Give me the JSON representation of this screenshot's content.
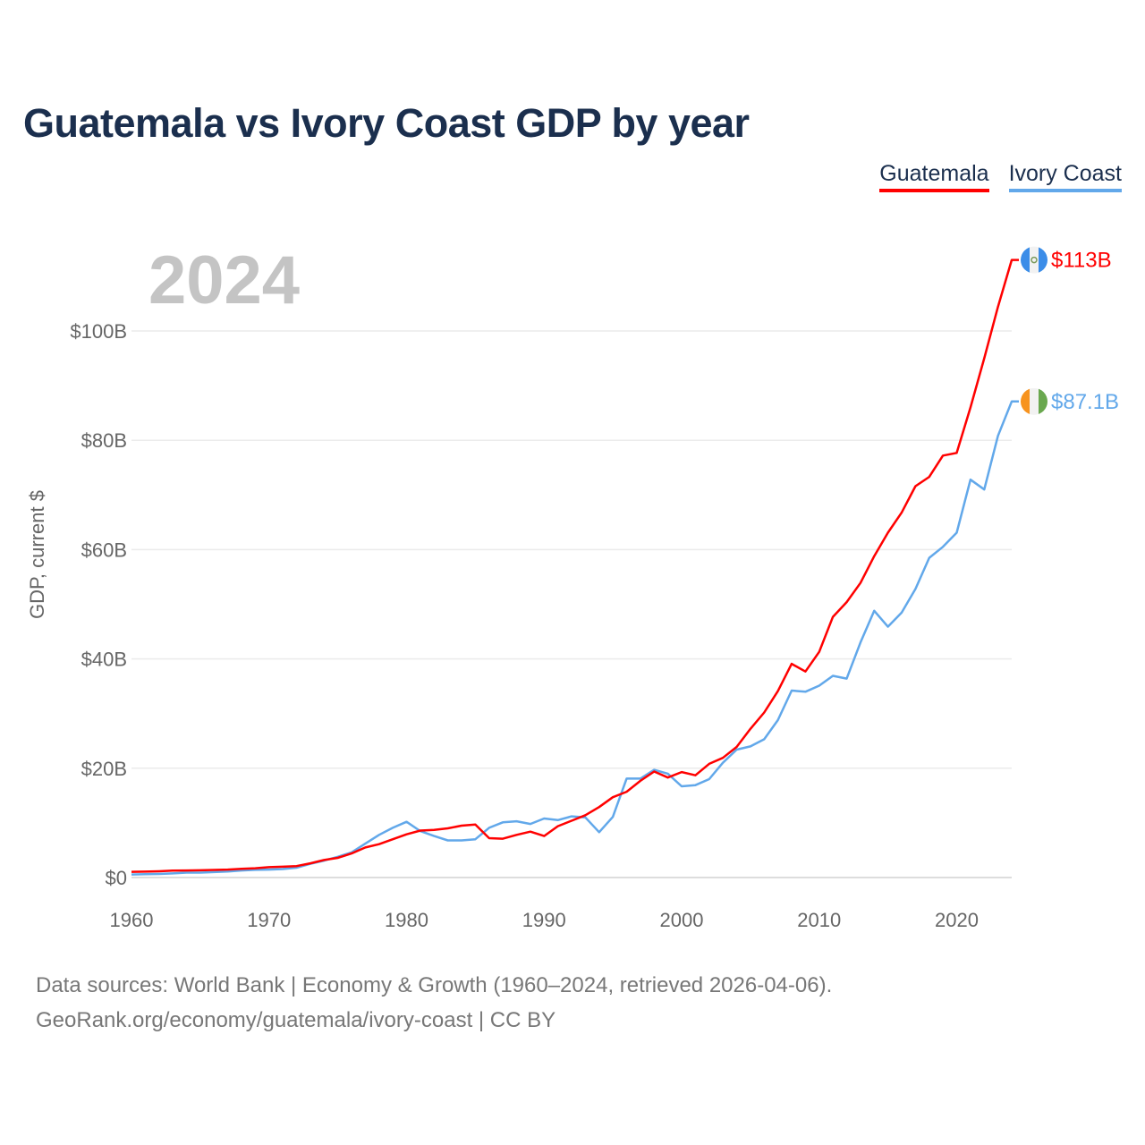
{
  "chart_data": {
    "type": "line",
    "title": "Guatemala vs Ivory Coast GDP by year",
    "xlabel": "",
    "ylabel": "GDP, current $",
    "current_year": "2024",
    "xlim": [
      1960,
      2024
    ],
    "ylim": [
      0,
      113
    ],
    "x_ticks": [
      1960,
      1970,
      1980,
      1990,
      2000,
      2010,
      2020
    ],
    "y_ticks": [
      0,
      20,
      40,
      60,
      80,
      100
    ],
    "y_tick_labels": [
      "$0",
      "$20B",
      "$40B",
      "$60B",
      "$80B",
      "$100B"
    ],
    "grid": true,
    "legend_placement": "top-right",
    "x": [
      1960,
      1961,
      1962,
      1963,
      1964,
      1965,
      1966,
      1967,
      1968,
      1969,
      1970,
      1971,
      1972,
      1973,
      1974,
      1975,
      1976,
      1977,
      1978,
      1979,
      1980,
      1981,
      1982,
      1983,
      1984,
      1985,
      1986,
      1987,
      1988,
      1989,
      1990,
      1991,
      1992,
      1993,
      1994,
      1995,
      1996,
      1997,
      1998,
      1999,
      2000,
      2001,
      2002,
      2003,
      2004,
      2005,
      2006,
      2007,
      2008,
      2009,
      2010,
      2011,
      2012,
      2013,
      2014,
      2015,
      2016,
      2017,
      2018,
      2019,
      2020,
      2021,
      2022,
      2023,
      2024
    ],
    "series": [
      {
        "name": "Guatemala",
        "color": "#ff0000",
        "end_label": "$113B",
        "flag": "guatemala-flag",
        "values": [
          1.04,
          1.08,
          1.15,
          1.26,
          1.3,
          1.33,
          1.39,
          1.45,
          1.6,
          1.7,
          1.9,
          1.98,
          2.1,
          2.6,
          3.2,
          3.6,
          4.4,
          5.5,
          6.1,
          7.0,
          7.9,
          8.6,
          8.7,
          9.0,
          9.5,
          9.7,
          7.2,
          7.1,
          7.8,
          8.4,
          7.6,
          9.4,
          10.4,
          11.4,
          12.9,
          14.7,
          15.7,
          17.7,
          19.4,
          18.3,
          19.3,
          18.7,
          20.8,
          21.9,
          23.9,
          27.2,
          30.2,
          34.1,
          39.1,
          37.7,
          41.3,
          47.7,
          50.4,
          53.9,
          58.8,
          63.1,
          66.8,
          71.6,
          73.3,
          77.2,
          77.7,
          86.0,
          95.0,
          104.4,
          113.0
        ]
      },
      {
        "name": "Ivory Coast",
        "color": "#62a8ea",
        "end_label": "$87.1B",
        "flag": "ivory-coast-flag",
        "values": [
          0.55,
          0.6,
          0.65,
          0.75,
          0.9,
          0.9,
          1.0,
          1.1,
          1.3,
          1.4,
          1.45,
          1.55,
          1.8,
          2.5,
          3.1,
          3.8,
          4.6,
          6.2,
          7.8,
          9.1,
          10.2,
          8.5,
          7.6,
          6.8,
          6.8,
          7.0,
          9.1,
          10.1,
          10.3,
          9.8,
          10.8,
          10.5,
          11.2,
          11.0,
          8.3,
          11.1,
          18.1,
          18.1,
          19.7,
          19.0,
          16.7,
          16.9,
          18.0,
          21.0,
          23.4,
          24.0,
          25.3,
          28.8,
          34.2,
          34.0,
          35.1,
          36.9,
          36.4,
          43.0,
          48.8,
          45.9,
          48.5,
          52.8,
          58.5,
          60.5,
          63.1,
          72.8,
          71.0,
          80.8,
          87.1
        ]
      }
    ]
  },
  "footer": {
    "line1": "Data sources: World Bank | Economy & Growth (1960–2024, retrieved 2026-04-06).",
    "line2": "GeoRank.org/economy/guatemala/ivory-coast | CC BY"
  }
}
